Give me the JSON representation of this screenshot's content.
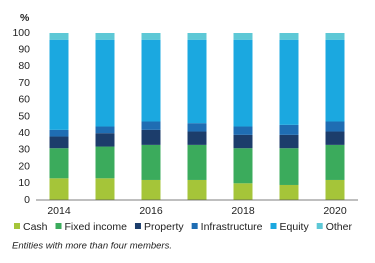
{
  "chart_data": {
    "type": "stacked_bar",
    "y_label": "%",
    "categories": [
      "2014",
      null,
      "2016",
      null,
      "2018",
      null,
      "2020"
    ],
    "series": [
      {
        "name": "Cash",
        "color": "#a5c539",
        "values": [
          13,
          13,
          12,
          12,
          10,
          9,
          12
        ]
      },
      {
        "name": "Fixed income",
        "color": "#3bab5c",
        "values": [
          18,
          19,
          21,
          21,
          21,
          22,
          21
        ]
      },
      {
        "name": "Property",
        "color": "#1c3d6b",
        "values": [
          7,
          8,
          9,
          8,
          8,
          8,
          8
        ]
      },
      {
        "name": "Infrastructure",
        "color": "#1f6db3",
        "values": [
          4,
          4,
          5,
          5,
          5,
          6,
          6
        ]
      },
      {
        "name": "Equity",
        "color": "#1ba8e0",
        "values": [
          54,
          52,
          49,
          50,
          52,
          51,
          49
        ]
      },
      {
        "name": "Other",
        "color": "#5dc8d6",
        "values": [
          4,
          4,
          4,
          4,
          4,
          4,
          4
        ]
      }
    ],
    "ylim": [
      0,
      100
    ],
    "yticks": [
      0,
      10,
      20,
      30,
      40,
      50,
      60,
      70,
      80,
      90,
      100
    ],
    "grid": false,
    "footnote": "Entities with more than four members."
  }
}
